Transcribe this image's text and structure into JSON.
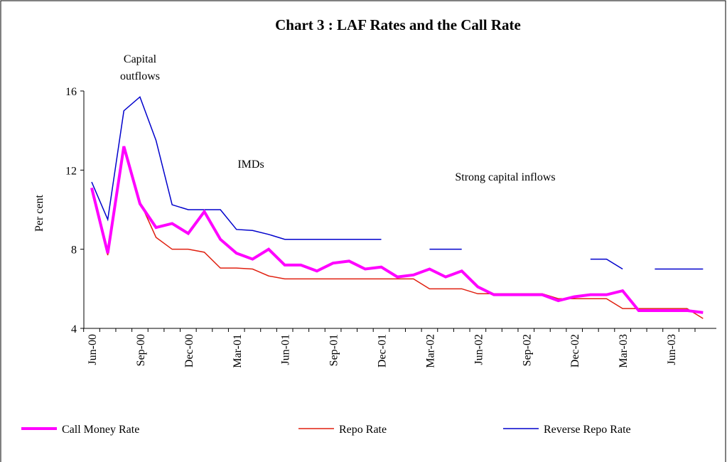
{
  "chart_data": {
    "type": "line",
    "title": "Chart 3 : LAF Rates and the Call Rate",
    "y_label": "Per cent",
    "annotations": [
      "Capital outflows",
      "IMDs",
      "Strong capital inflows"
    ],
    "categories": [
      "Jun-00",
      null,
      null,
      "Sep-00",
      null,
      null,
      "Dec-00",
      null,
      null,
      "Mar-01",
      null,
      null,
      "Jun-01",
      null,
      null,
      "Sep-01",
      null,
      null,
      "Dec-01",
      null,
      null,
      "Mar-02",
      null,
      null,
      "Jun-02",
      null,
      null,
      "Sep-02",
      null,
      null,
      "Dec-02",
      null,
      null,
      "Mar-03",
      null,
      null,
      "Jun-03",
      null,
      null
    ],
    "ylim": [
      4,
      16
    ],
    "yticks": [
      4,
      8,
      12,
      16
    ],
    "legend": "bottom",
    "series": [
      {
        "name": "Call Money Rate",
        "color": "#ff00ff",
        "values": [
          11.1,
          7.8,
          13.2,
          10.3,
          9.1,
          9.3,
          8.8,
          9.9,
          8.5,
          7.8,
          7.5,
          8.0,
          7.2,
          7.2,
          6.9,
          7.3,
          7.4,
          7.0,
          7.1,
          6.6,
          6.7,
          7.0,
          6.6,
          6.9,
          6.1,
          5.7,
          5.7,
          5.7,
          5.7,
          5.4,
          5.6,
          5.7,
          5.7,
          5.9,
          4.9,
          4.9,
          4.9,
          4.9,
          4.8
        ]
      },
      {
        "name": "Repo Rate",
        "color": "#e02010",
        "values": [
          11.0,
          7.7,
          13.1,
          10.4,
          8.6,
          8.0,
          8.0,
          7.85,
          7.05,
          7.05,
          7.0,
          6.65,
          6.5,
          6.5,
          6.5,
          6.5,
          6.5,
          6.5,
          6.5,
          6.5,
          6.5,
          6.0,
          6.0,
          6.0,
          5.75,
          5.75,
          5.75,
          5.75,
          5.75,
          5.5,
          5.5,
          5.5,
          5.5,
          5.0,
          5.0,
          5.0,
          5.0,
          5.0,
          4.5
        ]
      },
      {
        "name": "Reverse Repo Rate",
        "color": "#0000cc",
        "values": [
          11.4,
          9.5,
          15.0,
          15.7,
          13.5,
          10.25,
          10.0,
          10.0,
          10.0,
          9.0,
          8.95,
          8.75,
          8.5,
          8.5,
          8.5,
          8.5,
          8.5,
          8.5,
          8.5,
          null,
          null,
          8.0,
          8.0,
          8.0,
          null,
          null,
          null,
          null,
          null,
          null,
          null,
          7.5,
          7.5,
          7.0,
          null,
          7.0,
          7.0,
          7.0,
          7.0
        ]
      }
    ]
  }
}
